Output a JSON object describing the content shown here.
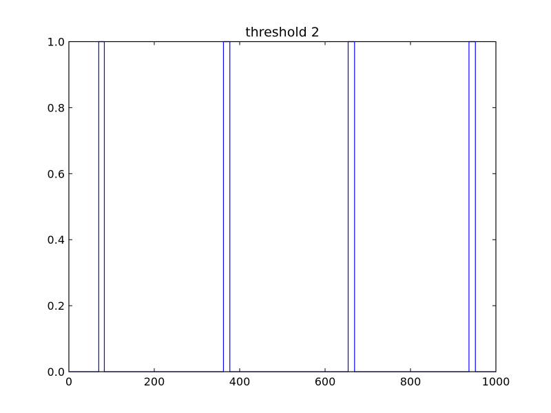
{
  "chart_data": {
    "type": "line",
    "title": "threshold 2",
    "xlabel": "",
    "ylabel": "",
    "xlim": [
      0,
      1000
    ],
    "ylim": [
      0.0,
      1.0
    ],
    "x_ticks": [
      0,
      200,
      400,
      600,
      800,
      1000
    ],
    "x_tick_labels": [
      "0",
      "200",
      "400",
      "600",
      "800",
      "1000"
    ],
    "y_ticks": [
      0.0,
      0.2,
      0.4,
      0.6,
      0.8,
      1.0
    ],
    "y_tick_labels": [
      "0.0",
      "0.2",
      "0.4",
      "0.6",
      "0.8",
      "1.0"
    ],
    "grid": false,
    "series": [
      {
        "color": "#0000ff",
        "x": [
          0,
          70,
          70,
          83,
          83,
          362,
          362,
          377,
          377,
          654,
          654,
          669,
          669,
          937,
          937,
          952,
          952,
          1000
        ],
        "y": [
          0,
          0,
          1,
          1,
          0,
          0,
          1,
          1,
          0,
          0,
          1,
          1,
          0,
          0,
          1,
          1,
          0,
          0
        ]
      }
    ]
  }
}
